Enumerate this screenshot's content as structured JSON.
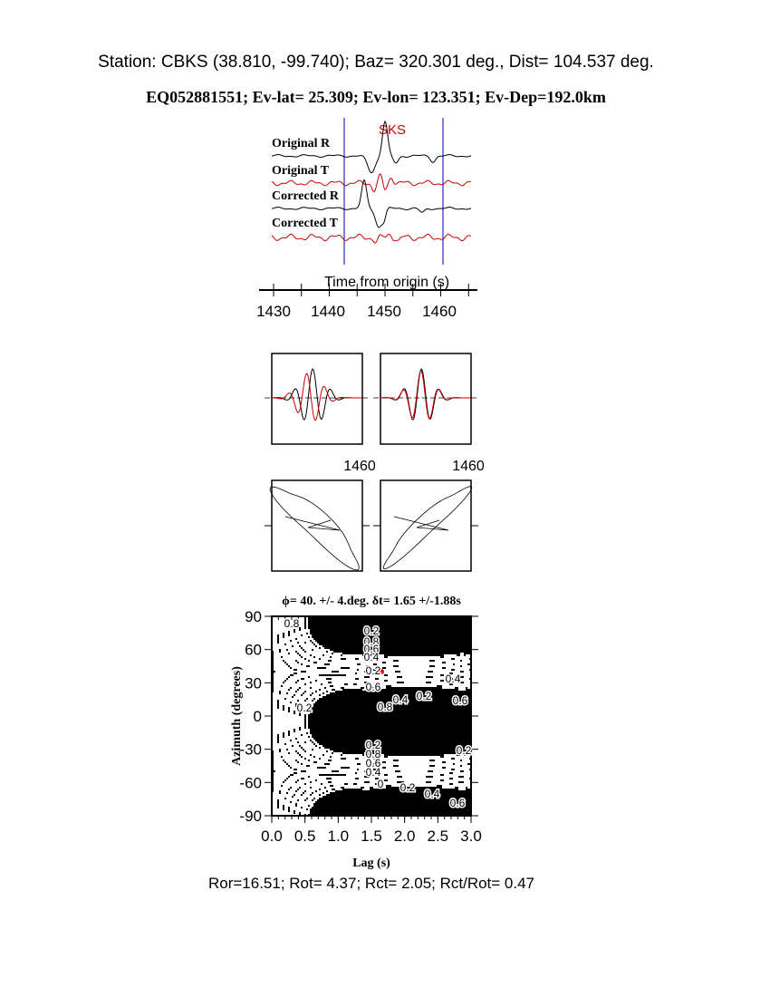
{
  "header": {
    "station_line": "Station: CBKS (38.810,  -99.740); Baz=  320.301 deg., Dist=  104.537 deg.",
    "event_line": "EQ052881551; Ev-lat=  25.309; Ev-lon= 123.351; Ev-Dep=192.0km"
  },
  "footer": "Ror=16.51; Rot= 4.37; Rct= 2.05; Rct/Rot= 0.47",
  "colors": {
    "radial": "#000000",
    "transverse": "#cc0000",
    "window": "#0000aa",
    "phase": "#cc0000"
  },
  "chart_data": [
    {
      "type": "line",
      "phase_label": "SKS",
      "trace_labels": [
        "Original R",
        "Original T",
        "Corrected R",
        "Corrected T"
      ],
      "xlabel": "Time from origin (s)",
      "x_ticks": [
        "1430",
        "1440",
        "1450",
        "1460"
      ],
      "xlim": [
        1430,
        1466
      ],
      "window": [
        1443,
        1461
      ]
    },
    {
      "type": "line",
      "panels": [
        "original",
        "corrected"
      ],
      "x_tick_labels": [
        "1460",
        "1460"
      ]
    },
    {
      "type": "line",
      "panels": [
        "original particle motion",
        "corrected particle motion"
      ]
    },
    {
      "type": "heatmap",
      "title": "ϕ= 40. +/- 4.deg. δt= 1.65 +/-1.88s",
      "xlabel": "Lag (s)",
      "ylabel": "Azimuth (degrees)",
      "x_ticks": [
        "0.0",
        "0.5",
        "1.0",
        "1.5",
        "2.0",
        "2.5",
        "3.0"
      ],
      "y_ticks": [
        "90",
        "60",
        "30",
        "0",
        "-30",
        "-60",
        "-90"
      ],
      "xlim": [
        0,
        3
      ],
      "ylim": [
        -90,
        90
      ],
      "best_fit": {
        "lag": 1.65,
        "azimuth": 40
      },
      "contour_labels": [
        "0.2",
        "0.8",
        "0.6",
        "0.4",
        "0.2",
        "0.2",
        "0.4",
        "0.6",
        "0.2",
        "0.4",
        "0.8",
        "0.6",
        "0.2",
        "0.8",
        "0.6",
        "0.4",
        "0.2",
        "0",
        "0.2",
        "0.4",
        "0.6",
        "0.8"
      ]
    }
  ]
}
